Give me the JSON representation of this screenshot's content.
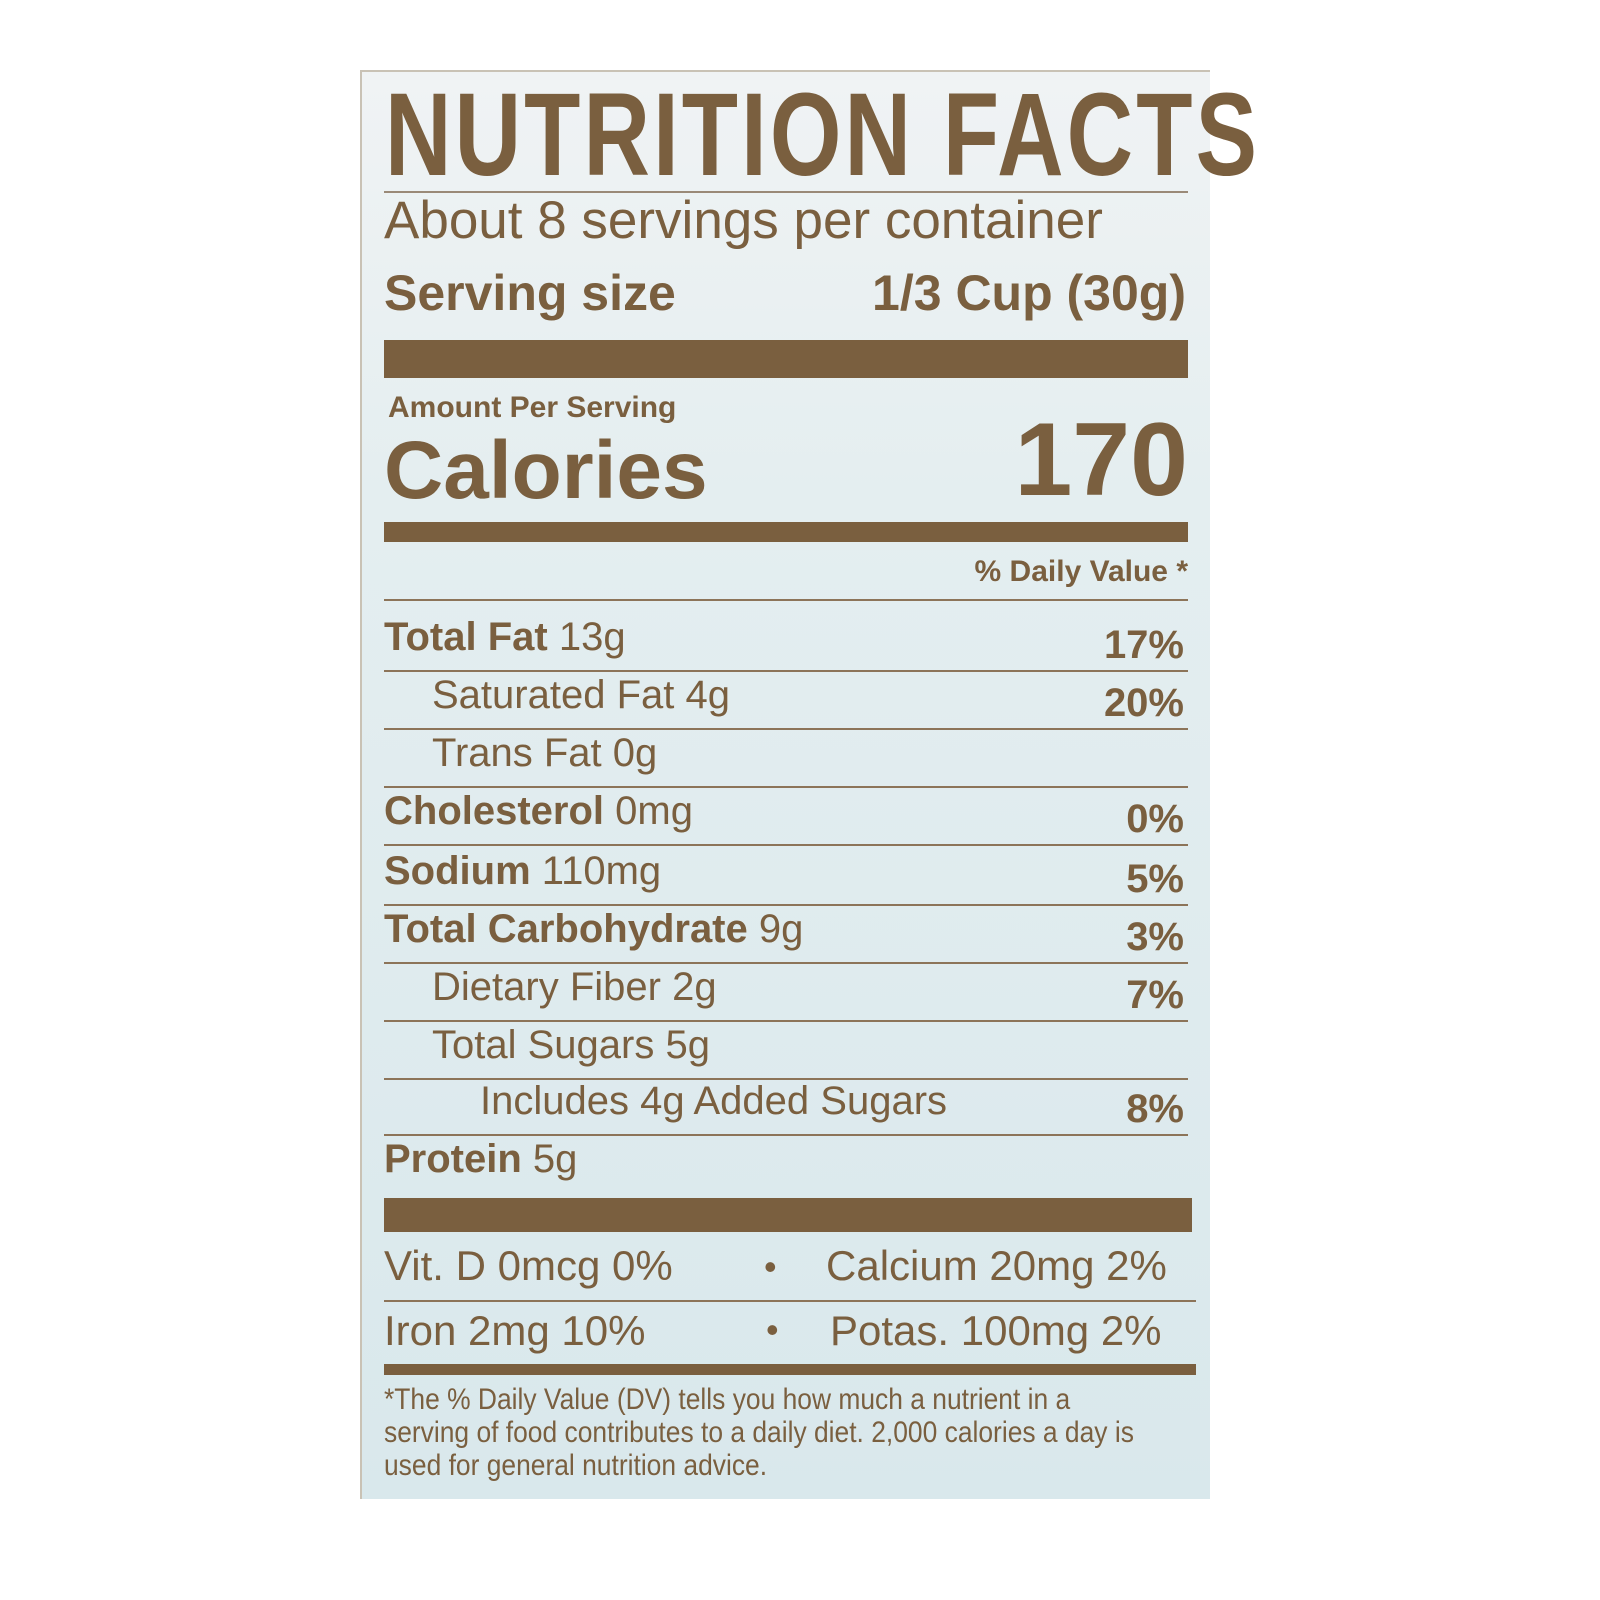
{
  "title": "NUTRITION FACTS",
  "servings_per_container": "About 8 servings per container",
  "serving_size": {
    "label": "Serving size",
    "value": "1/3 Cup (30g)"
  },
  "amount_per_serving": "Amount Per Serving",
  "calories": {
    "label": "Calories",
    "value": "170"
  },
  "daily_value_header": "% Daily Value *",
  "nutrients": [
    {
      "name": "Total Fat",
      "amount": "13g",
      "dv": "17%"
    },
    {
      "name": "Saturated Fat",
      "amount": "4g",
      "dv": "20%"
    },
    {
      "name": "Trans Fat",
      "amount": "0g",
      "dv": ""
    },
    {
      "name": "Cholesterol",
      "amount": "0mg",
      "dv": "0%"
    },
    {
      "name": "Sodium",
      "amount": "110mg",
      "dv": "5%"
    },
    {
      "name": "Total Carbohydrate",
      "amount": "9g",
      "dv": "3%"
    },
    {
      "name": "Dietary Fiber",
      "amount": "2g",
      "dv": "7%"
    },
    {
      "name": "Total Sugars",
      "amount": "5g",
      "dv": ""
    },
    {
      "name": "Includes 4g Added Sugars",
      "amount": "",
      "dv": "8%"
    },
    {
      "name": "Protein",
      "amount": "5g",
      "dv": ""
    }
  ],
  "vitamins": [
    "Vit. D 0mcg 0%",
    "Calcium 20mg 2%",
    "Iron 2mg 10%",
    "Potas. 100mg 2%"
  ],
  "separator": "•",
  "footnote": "*The % Daily Value (DV) tells you how much a nutrient in a serving of food contributes to a daily diet. 2,000 calories a day is used for general nutrition advice.",
  "colors": {
    "ink": "#7a5f3f",
    "background": "#d9e8ec"
  }
}
